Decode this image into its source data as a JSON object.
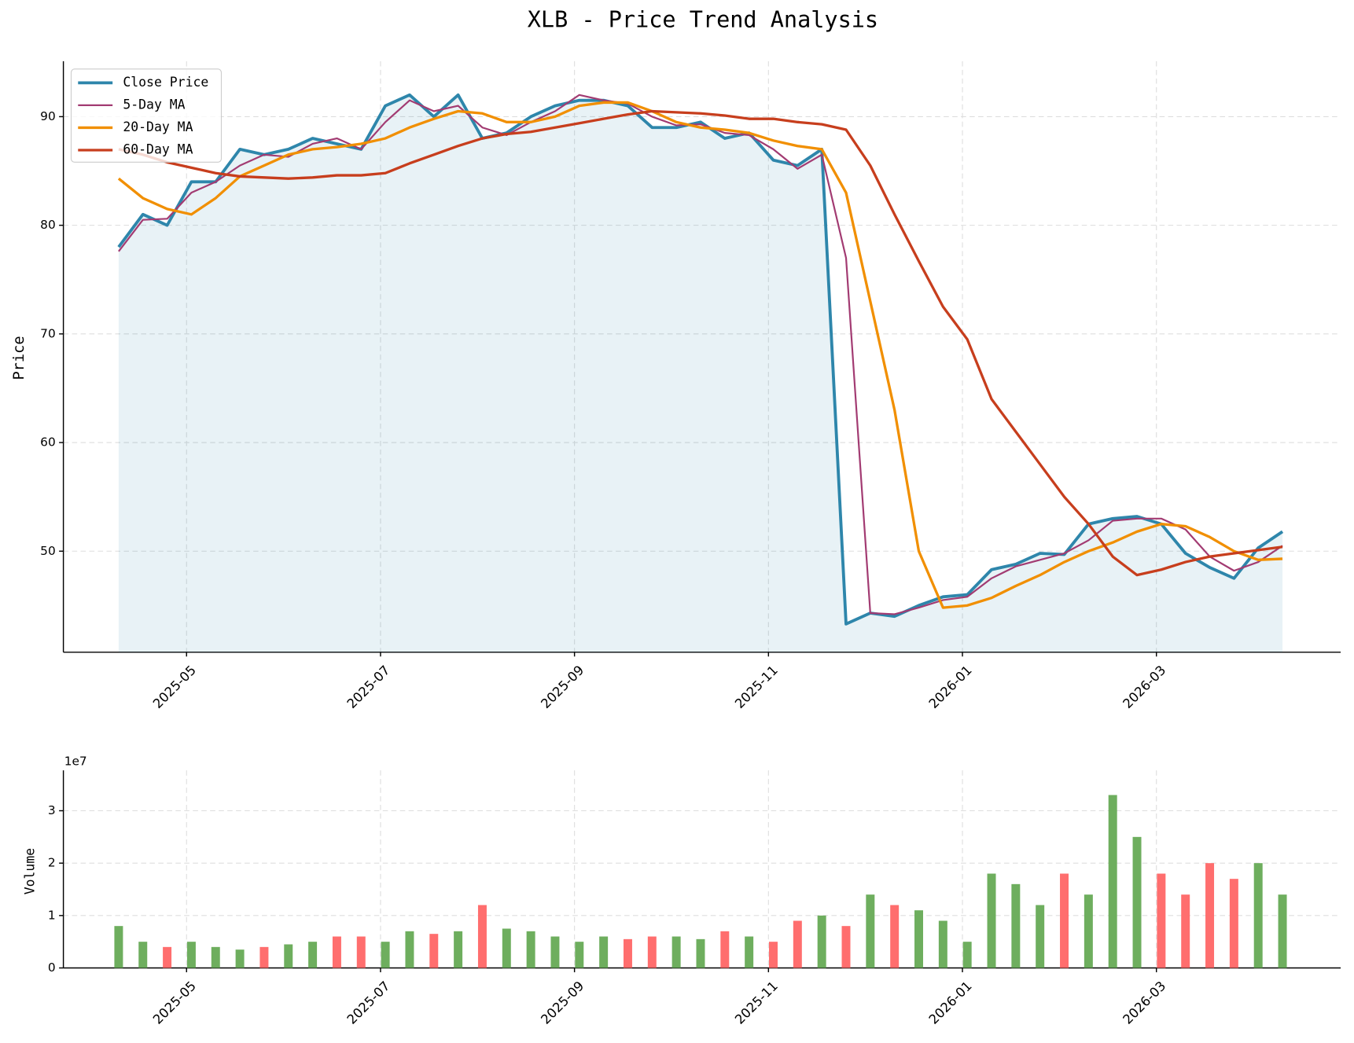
{
  "chart_data": [
    {
      "type": "line",
      "title": "XLB - Price Trend Analysis",
      "ylabel": "Price",
      "x": [
        3.3,
        3.55,
        3.8,
        4.05,
        4.3,
        4.55,
        4.8,
        5.05,
        5.3,
        5.55,
        5.8,
        6.05,
        6.3,
        6.55,
        6.8,
        7.05,
        7.3,
        7.55,
        7.8,
        8.05,
        8.3,
        8.55,
        8.8,
        9.05,
        9.3,
        9.55,
        9.8,
        10.05,
        10.3,
        10.55,
        10.8,
        11.05,
        11.3,
        11.55,
        11.8,
        12.05,
        12.3,
        12.55,
        12.8,
        13.05,
        13.3,
        13.55,
        13.8,
        14.05,
        14.3,
        14.55,
        14.8,
        15.05,
        15.3
      ],
      "xlim": [
        2.73,
        15.9
      ],
      "xticks": [
        {
          "value": 4,
          "label": "2025-05"
        },
        {
          "value": 6,
          "label": "2025-07"
        },
        {
          "value": 8,
          "label": "2025-09"
        },
        {
          "value": 10,
          "label": "2025-11"
        },
        {
          "value": 12,
          "label": "2026-01"
        },
        {
          "value": 14,
          "label": "2026-03"
        }
      ],
      "ylim": [
        40.7,
        95.1
      ],
      "yticks": [
        50,
        60,
        70,
        80,
        90
      ],
      "grid": true,
      "legend": "upper left",
      "fill_under": 0,
      "series": [
        {
          "name": "Close Price",
          "color": "#2e86ab",
          "values": [
            78,
            81,
            80,
            84,
            84,
            87,
            86.5,
            87,
            88,
            87.5,
            87,
            91,
            92,
            90,
            92,
            88,
            88.5,
            90,
            91,
            91.5,
            91.5,
            91,
            89,
            89,
            89.5,
            88,
            88.5,
            86,
            85.5,
            87,
            43.3,
            44.3,
            44,
            45,
            45.8,
            46,
            48.3,
            48.8,
            49.8,
            49.7,
            52.5,
            53,
            53.2,
            52.5,
            49.8,
            48.5,
            47.5,
            50.3,
            51.8
          ]
        },
        {
          "name": "5-Day MA",
          "color": "#a23b72",
          "values": [
            77.6,
            80.5,
            80.6,
            83,
            84,
            85.5,
            86.5,
            86.3,
            87.5,
            88,
            87,
            89.5,
            91.5,
            90.5,
            91,
            89,
            88.3,
            89.5,
            90.5,
            92,
            91.5,
            91.2,
            90,
            89.2,
            89.3,
            88.5,
            88.3,
            87,
            85.2,
            86.5,
            77,
            44.3,
            44.2,
            44.8,
            45.5,
            45.8,
            47.5,
            48.6,
            49.2,
            49.8,
            51,
            52.8,
            53,
            53,
            52,
            49.5,
            48.2,
            49,
            50.5
          ]
        },
        {
          "name": "20-Day MA",
          "color": "#f18f01",
          "values": [
            84.3,
            82.5,
            81.5,
            81,
            82.5,
            84.5,
            85.5,
            86.5,
            87,
            87.2,
            87.5,
            88,
            89,
            89.8,
            90.5,
            90.3,
            89.5,
            89.5,
            90,
            91,
            91.3,
            91.3,
            90.5,
            89.5,
            89,
            88.8,
            88.5,
            87.8,
            87.3,
            87,
            83,
            73,
            63,
            50,
            44.8,
            45,
            45.7,
            46.8,
            47.8,
            49,
            50,
            50.8,
            51.8,
            52.5,
            52.3,
            51.3,
            50,
            49.2,
            49.3
          ]
        },
        {
          "name": "60-Day MA",
          "color": "#c73e1d",
          "values": [
            87,
            86.5,
            85.8,
            85.3,
            84.8,
            84.5,
            84.4,
            84.3,
            84.4,
            84.6,
            84.6,
            84.8,
            85.7,
            86.5,
            87.3,
            88,
            88.4,
            88.6,
            89,
            89.4,
            89.8,
            90.2,
            90.5,
            90.4,
            90.3,
            90.1,
            89.8,
            89.8,
            89.5,
            89.3,
            88.8,
            85.5,
            81,
            76.7,
            72.5,
            69.5,
            64,
            61,
            58,
            55,
            52.5,
            49.5,
            47.8,
            48.3,
            49,
            49.5,
            49.8,
            50.1,
            50.4
          ]
        }
      ]
    },
    {
      "type": "bar",
      "ylabel": "Volume",
      "offset_label": "1e7",
      "x": [
        3.3,
        3.55,
        3.8,
        4.05,
        4.3,
        4.55,
        4.8,
        5.05,
        5.3,
        5.55,
        5.8,
        6.05,
        6.3,
        6.55,
        6.8,
        7.05,
        7.3,
        7.55,
        7.8,
        8.05,
        8.3,
        8.55,
        8.8,
        9.05,
        9.3,
        9.55,
        9.8,
        10.05,
        10.3,
        10.55,
        10.8,
        11.05,
        11.3,
        11.55,
        11.8,
        12.05,
        12.3,
        12.55,
        12.8,
        13.05,
        13.3,
        13.55,
        13.8,
        14.05,
        14.3,
        14.55,
        14.8,
        15.05,
        15.3
      ],
      "values": [
        8000000,
        5000000,
        4000000,
        5000000,
        4000000,
        3500000,
        4000000,
        4500000,
        5000000,
        6000000,
        6000000,
        5000000,
        7000000,
        6500000,
        7000000,
        12000000,
        7500000,
        7000000,
        6000000,
        5000000,
        6000000,
        5500000,
        6000000,
        6000000,
        5500000,
        7000000,
        6000000,
        5000000,
        9000000,
        10000000,
        8000000,
        14000000,
        12000000,
        11000000,
        9000000,
        5000000,
        18000000,
        16000000,
        12000000,
        18000000,
        14000000,
        33000000,
        25000000,
        18000000,
        14000000,
        20000000,
        17000000,
        20000000,
        14000000
      ],
      "up_color": "#66aa55",
      "down_color": "#ff6666",
      "xlim": [
        2.73,
        15.9
      ],
      "xticks": [
        {
          "value": 4,
          "label": "2025-05"
        },
        {
          "value": 6,
          "label": "2025-07"
        },
        {
          "value": 8,
          "label": "2025-09"
        },
        {
          "value": 10,
          "label": "2025-11"
        },
        {
          "value": 12,
          "label": "2026-01"
        },
        {
          "value": 14,
          "label": "2026-03"
        }
      ],
      "ylim": [
        0,
        37700000
      ],
      "yticks": [
        0,
        {
          "value": 10000000,
          "label": "1"
        },
        {
          "value": 20000000,
          "label": "2"
        },
        {
          "value": 30000000,
          "label": "3"
        }
      ],
      "grid": true
    }
  ]
}
